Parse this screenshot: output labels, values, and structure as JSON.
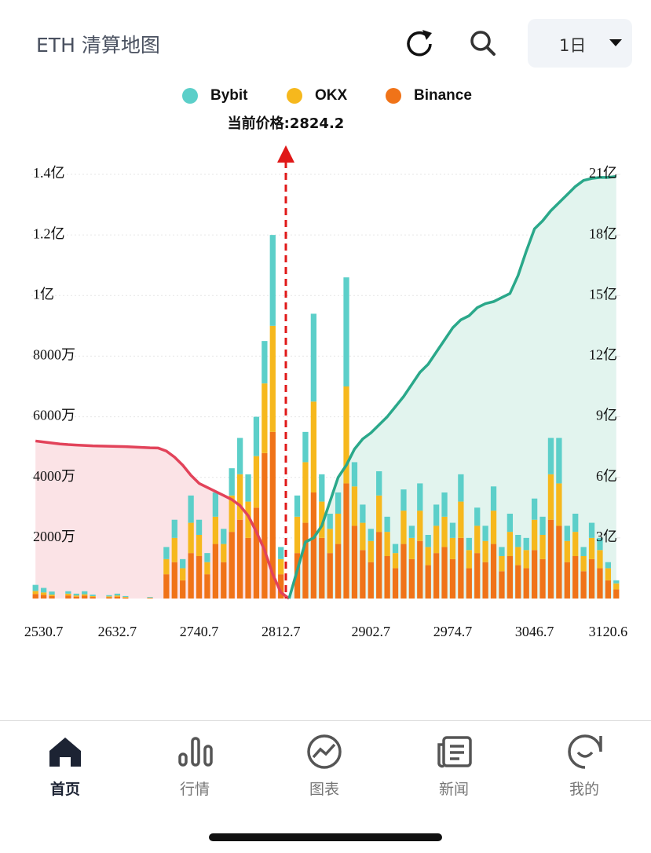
{
  "header": {
    "title": "ETH 清算地图",
    "period": "1日"
  },
  "chart_data": {
    "type": "bar",
    "stacked": true,
    "annotation": "当前价格:2824.2",
    "categories": [
      null,
      "2530.7",
      null,
      null,
      null,
      null,
      null,
      null,
      null,
      null,
      "2632.7",
      null,
      null,
      null,
      null,
      null,
      null,
      null,
      null,
      null,
      "2740.7",
      null,
      null,
      null,
      null,
      null,
      null,
      null,
      null,
      null,
      "2812.7",
      null,
      null,
      null,
      null,
      null,
      null,
      null,
      null,
      null,
      null,
      "2902.7",
      null,
      null,
      null,
      null,
      null,
      null,
      null,
      null,
      null,
      "2974.7",
      null,
      null,
      null,
      null,
      null,
      null,
      null,
      null,
      null,
      "3046.7",
      null,
      null,
      null,
      null,
      null,
      null,
      null,
      null,
      "3120.6",
      null
    ],
    "series": [
      {
        "name": "Bybit",
        "color": "#5ccfc9",
        "values": [
          200,
          150,
          100,
          0,
          80,
          60,
          100,
          50,
          0,
          40,
          60,
          30,
          0,
          0,
          20,
          0,
          400,
          600,
          300,
          900,
          500,
          300,
          800,
          500,
          900,
          1200,
          900,
          1300,
          1400,
          3000,
          400,
          0,
          700,
          1000,
          2900,
          900,
          500,
          700,
          3600,
          800,
          600,
          400,
          800,
          500,
          300,
          700,
          400,
          900,
          400,
          700,
          800,
          500,
          900,
          400,
          600,
          500,
          800,
          300,
          600,
          400,
          400,
          700,
          600,
          1200,
          1500,
          500,
          600,
          300,
          500,
          400,
          200,
          100
        ]
      },
      {
        "name": "OKX",
        "color": "#f6b81d",
        "values": [
          100,
          80,
          50,
          0,
          60,
          40,
          50,
          30,
          0,
          30,
          40,
          20,
          0,
          0,
          10,
          0,
          500,
          800,
          400,
          1000,
          700,
          400,
          900,
          600,
          1200,
          1500,
          1200,
          1700,
          2300,
          3500,
          500,
          0,
          1200,
          2000,
          3000,
          1200,
          800,
          1000,
          3200,
          1300,
          900,
          700,
          1200,
          800,
          500,
          1100,
          700,
          1000,
          600,
          900,
          1000,
          700,
          1200,
          600,
          900,
          700,
          1100,
          500,
          800,
          600,
          600,
          1000,
          800,
          1500,
          1400,
          700,
          800,
          500,
          700,
          600,
          400,
          200
        ]
      },
      {
        "name": "Binance",
        "color": "#f07318",
        "values": [
          150,
          120,
          80,
          0,
          100,
          60,
          90,
          50,
          0,
          40,
          60,
          30,
          0,
          0,
          20,
          0,
          800,
          1200,
          600,
          1500,
          1400,
          800,
          1800,
          1200,
          2200,
          2600,
          2000,
          3000,
          4800,
          5500,
          800,
          0,
          1500,
          2500,
          3500,
          2000,
          1500,
          1800,
          3800,
          2400,
          1600,
          1200,
          2200,
          1400,
          1000,
          1800,
          1300,
          1900,
          1100,
          1500,
          1700,
          1300,
          2000,
          1000,
          1500,
          1200,
          1800,
          900,
          1400,
          1100,
          1000,
          1600,
          1300,
          2600,
          2400,
          1200,
          1400,
          900,
          1300,
          1000,
          600,
          300
        ]
      }
    ],
    "lines": [
      {
        "color": "#e2435a",
        "fill": "#fbe3e6",
        "axis": "y2",
        "values": [
          78000,
          77500,
          77000,
          76500,
          76200,
          76000,
          75800,
          75600,
          75500,
          75400,
          75300,
          75200,
          75000,
          74800,
          74600,
          74500,
          73000,
          70000,
          66000,
          61000,
          57000,
          55000,
          53000,
          51000,
          49000,
          46000,
          41000,
          33000,
          24000,
          12000,
          3000,
          0,
          null,
          null,
          null,
          null,
          null,
          null,
          null,
          null,
          null,
          null,
          null,
          null,
          null,
          null,
          null,
          null,
          null,
          null,
          null,
          null,
          null,
          null,
          null,
          null,
          null,
          null,
          null,
          null,
          null,
          null,
          null,
          null,
          null,
          null,
          null,
          null,
          null,
          null,
          null,
          null
        ]
      },
      {
        "color": "#2aa88a",
        "fill": "#e2f4ee",
        "axis": "y2",
        "values": [
          null,
          null,
          null,
          null,
          null,
          null,
          null,
          null,
          null,
          null,
          null,
          null,
          null,
          null,
          null,
          null,
          null,
          null,
          null,
          null,
          null,
          null,
          null,
          null,
          null,
          null,
          null,
          null,
          null,
          null,
          null,
          0,
          14000,
          28000,
          30000,
          36000,
          48000,
          60000,
          66000,
          74000,
          79000,
          82000,
          86000,
          90000,
          95000,
          100000,
          106000,
          112000,
          116000,
          122000,
          128000,
          134000,
          138000,
          140000,
          144000,
          146000,
          147000,
          149000,
          151000,
          160000,
          172000,
          183000,
          187000,
          192000,
          196000,
          200000,
          204000,
          207000,
          208000,
          208500,
          208500,
          209000
        ]
      }
    ],
    "ylim": [
      0,
      14000
    ],
    "yticks": [
      {
        "value": 2000,
        "label": "2000万"
      },
      {
        "value": 4000,
        "label": "4000万"
      },
      {
        "value": 6000,
        "label": "6000万"
      },
      {
        "value": 8000,
        "label": "8000万"
      },
      {
        "value": 10000,
        "label": "1亿"
      },
      {
        "value": 12000,
        "label": "1.2亿"
      },
      {
        "value": 14000,
        "label": "1.4亿"
      }
    ],
    "y2lim": [
      0,
      210000
    ],
    "y2ticks": [
      {
        "value": 30000,
        "label": "3亿"
      },
      {
        "value": 60000,
        "label": "6亿"
      },
      {
        "value": 90000,
        "label": "9亿"
      },
      {
        "value": 120000,
        "label": "12亿"
      },
      {
        "value": 150000,
        "label": "15亿"
      },
      {
        "value": 180000,
        "label": "18亿"
      },
      {
        "value": 210000,
        "label": "21亿"
      }
    ],
    "grid": true,
    "legend": "top"
  },
  "nav": [
    {
      "label": "首页"
    },
    {
      "label": "行情"
    },
    {
      "label": "图表"
    },
    {
      "label": "新闻"
    },
    {
      "label": "我的"
    }
  ]
}
